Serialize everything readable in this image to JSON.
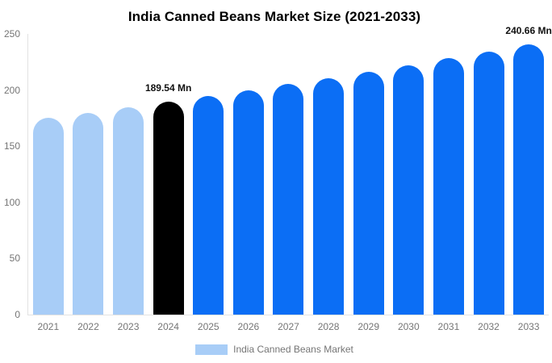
{
  "title": "India Canned Beans Market Size (2021-2033)",
  "chart_data": {
    "type": "bar",
    "title": "India Canned Beans Market Size (2021-2033)",
    "xlabel": "",
    "ylabel": "",
    "unit": "Mn",
    "categories": [
      "2021",
      "2022",
      "2023",
      "2024",
      "2025",
      "2026",
      "2027",
      "2028",
      "2029",
      "2030",
      "2031",
      "2032",
      "2033"
    ],
    "values": [
      175.04,
      179.74,
      184.58,
      189.54,
      194.64,
      199.87,
      205.25,
      210.77,
      216.43,
      222.25,
      228.23,
      234.37,
      240.66
    ],
    "ylim": [
      0,
      250
    ],
    "yticks": [
      0,
      50,
      100,
      150,
      200,
      250
    ],
    "grid": "off",
    "legend_position": "bottom",
    "bar_roles": [
      "past",
      "past",
      "past",
      "current",
      "forecast",
      "forecast",
      "forecast",
      "forecast",
      "forecast",
      "forecast",
      "forecast",
      "forecast",
      "forecast"
    ],
    "palette": {
      "past": "#a8cdf7",
      "current": "#000000",
      "forecast": "#0b6ef5"
    },
    "annotations": [
      {
        "index": 3,
        "text": "189.54 Mn"
      },
      {
        "index": 12,
        "text": "240.66 Mn"
      }
    ],
    "legend": [
      {
        "label": "India Canned Beans Market",
        "color": "#a8cdf7"
      }
    ],
    "axis_color": "#e2e2e2",
    "tick_label_color": "#757575",
    "annotation_color": "#111111",
    "background_color": "#ffffff"
  }
}
